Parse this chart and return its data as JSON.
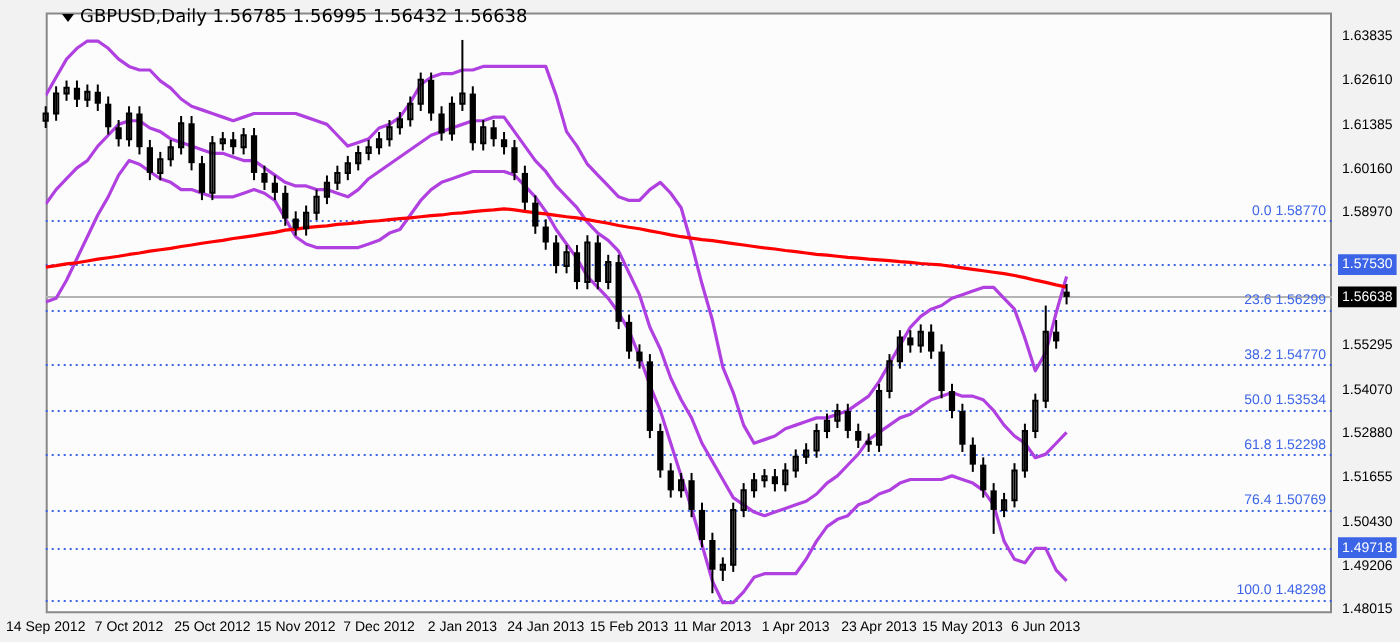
{
  "chart_data": {
    "type": "candlestick",
    "title": "GBPUSD,Daily 1.56785 1.56995 1.56432 1.56638",
    "categories": [
      "14 Sep 2012",
      null,
      null,
      null,
      null,
      null,
      null,
      null,
      "7 Oct 2012",
      null,
      null,
      null,
      null,
      null,
      null,
      null,
      "25 Oct 2012",
      null,
      null,
      null,
      null,
      null,
      null,
      null,
      "15 Nov 2012",
      null,
      null,
      null,
      null,
      null,
      null,
      null,
      "7 Dec 2012",
      null,
      null,
      null,
      null,
      null,
      null,
      null,
      "2 Jan 2013",
      null,
      null,
      null,
      null,
      null,
      null,
      null,
      "24 Jan 2013",
      null,
      null,
      null,
      null,
      null,
      null,
      null,
      "15 Feb 2013",
      null,
      null,
      null,
      null,
      null,
      null,
      null,
      "11 Mar 2013",
      null,
      null,
      null,
      null,
      null,
      null,
      null,
      "1 Apr 2013",
      null,
      null,
      null,
      null,
      null,
      null,
      null,
      "23 Apr 2013",
      null,
      null,
      null,
      null,
      null,
      null,
      null,
      "15 May 2013",
      null,
      null,
      null,
      null,
      null,
      null,
      null,
      "6 Jun 2013",
      null,
      null
    ],
    "color": "#000000",
    "ohlc": [
      [
        1.615,
        1.619,
        1.613,
        1.617
      ],
      [
        1.617,
        1.6245,
        1.615,
        1.6225
      ],
      [
        1.6225,
        1.6261,
        1.6205,
        1.6241
      ],
      [
        1.6241,
        1.6261,
        1.6188,
        1.6208
      ],
      [
        1.6208,
        1.625,
        1.6188,
        1.623
      ],
      [
        1.623,
        1.625,
        1.6177,
        1.6197
      ],
      [
        1.6197,
        1.6217,
        1.6112,
        1.6132
      ],
      [
        1.6132,
        1.6152,
        1.6079,
        1.6099
      ],
      [
        1.6099,
        1.619,
        1.6079,
        1.617
      ],
      [
        1.617,
        1.619,
        1.6057,
        1.6077
      ],
      [
        1.6077,
        1.6097,
        1.5986,
        1.6006
      ],
      [
        1.6006,
        1.6064,
        1.5986,
        1.6044
      ],
      [
        1.6044,
        1.6097,
        1.6024,
        1.6077
      ],
      [
        1.6077,
        1.6163,
        1.6057,
        1.6143
      ],
      [
        1.6143,
        1.6163,
        1.6013,
        1.6033
      ],
      [
        1.6033,
        1.6053,
        1.5931,
        1.5951
      ],
      [
        1.5951,
        1.6108,
        1.5931,
        1.6088
      ],
      [
        1.6088,
        1.6119,
        1.6068,
        1.6099
      ],
      [
        1.6099,
        1.6119,
        1.6057,
        1.6077
      ],
      [
        1.6077,
        1.613,
        1.6057,
        1.611
      ],
      [
        1.611,
        1.613,
        1.5986,
        1.6006
      ],
      [
        1.6006,
        1.6026,
        1.5959,
        1.5979
      ],
      [
        1.5979,
        1.5999,
        1.5931,
        1.5951
      ],
      [
        1.5951,
        1.5971,
        1.586,
        1.588
      ],
      [
        1.588,
        1.59,
        1.5833,
        1.5853
      ],
      [
        1.5853,
        1.5916,
        1.5833,
        1.5896
      ],
      [
        1.5896,
        1.596,
        1.5876,
        1.594
      ],
      [
        1.594,
        1.5999,
        1.592,
        1.5979
      ],
      [
        1.5979,
        1.6026,
        1.5959,
        1.6006
      ],
      [
        1.6006,
        1.6053,
        1.5986,
        1.6033
      ],
      [
        1.6033,
        1.6081,
        1.6013,
        1.6061
      ],
      [
        1.6061,
        1.6097,
        1.6041,
        1.6077
      ],
      [
        1.6077,
        1.6119,
        1.6057,
        1.6099
      ],
      [
        1.6099,
        1.6152,
        1.6079,
        1.6132
      ],
      [
        1.6132,
        1.6174,
        1.6112,
        1.6154
      ],
      [
        1.6154,
        1.6217,
        1.6134,
        1.6197
      ],
      [
        1.6197,
        1.6283,
        1.6177,
        1.6263
      ],
      [
        1.6263,
        1.6283,
        1.615,
        1.617
      ],
      [
        1.617,
        1.619,
        1.6095,
        1.6115
      ],
      [
        1.6115,
        1.6217,
        1.6095,
        1.6197
      ],
      [
        1.6197,
        1.6373,
        1.6177,
        1.6225
      ],
      [
        1.6225,
        1.6245,
        1.6068,
        1.6088
      ],
      [
        1.6088,
        1.6152,
        1.6068,
        1.6132
      ],
      [
        1.6132,
        1.6152,
        1.6079,
        1.6099
      ],
      [
        1.6099,
        1.6119,
        1.6057,
        1.6077
      ],
      [
        1.6077,
        1.6097,
        1.5986,
        1.6006
      ],
      [
        1.6006,
        1.6026,
        1.5904,
        1.5924
      ],
      [
        1.5924,
        1.5944,
        1.5838,
        1.5858
      ],
      [
        1.5858,
        1.5878,
        1.5794,
        1.5814
      ],
      [
        1.5814,
        1.5834,
        1.5729,
        1.5749
      ],
      [
        1.5749,
        1.5807,
        1.5729,
        1.5787
      ],
      [
        1.5787,
        1.5807,
        1.5685,
        1.5705
      ],
      [
        1.5705,
        1.5834,
        1.5685,
        1.5814
      ],
      [
        1.5814,
        1.5834,
        1.5685,
        1.5705
      ],
      [
        1.5705,
        1.578,
        1.5685,
        1.576
      ],
      [
        1.576,
        1.578,
        1.5575,
        1.5595
      ],
      [
        1.5595,
        1.5615,
        1.5493,
        1.5513
      ],
      [
        1.5513,
        1.5533,
        1.5466,
        1.5486
      ],
      [
        1.5486,
        1.5506,
        1.5274,
        1.5294
      ],
      [
        1.5294,
        1.5314,
        1.5165,
        1.5185
      ],
      [
        1.5185,
        1.5205,
        1.511,
        1.513
      ],
      [
        1.513,
        1.5178,
        1.511,
        1.5158
      ],
      [
        1.5158,
        1.5178,
        1.5056,
        1.5076
      ],
      [
        1.5076,
        1.5096,
        1.4973,
        1.4993
      ],
      [
        1.4993,
        1.5013,
        1.4846,
        1.4911
      ],
      [
        1.4911,
        1.4945,
        1.488,
        1.4925
      ],
      [
        1.4925,
        1.5096,
        1.4905,
        1.5076
      ],
      [
        1.5076,
        1.515,
        1.5056,
        1.513
      ],
      [
        1.513,
        1.5178,
        1.511,
        1.5158
      ],
      [
        1.5158,
        1.5189,
        1.5138,
        1.5169
      ],
      [
        1.5169,
        1.5189,
        1.5127,
        1.5147
      ],
      [
        1.5147,
        1.5205,
        1.5127,
        1.5185
      ],
      [
        1.5185,
        1.5243,
        1.5165,
        1.5223
      ],
      [
        1.5223,
        1.526,
        1.5203,
        1.524
      ],
      [
        1.524,
        1.5314,
        1.522,
        1.5294
      ],
      [
        1.5294,
        1.5342,
        1.5274,
        1.5322
      ],
      [
        1.5322,
        1.5369,
        1.5302,
        1.5349
      ],
      [
        1.5349,
        1.5369,
        1.5274,
        1.5294
      ],
      [
        1.5294,
        1.5314,
        1.5247,
        1.5267
      ],
      [
        1.5267,
        1.5287,
        1.5236,
        1.5256
      ],
      [
        1.5256,
        1.5424,
        1.5236,
        1.5404
      ],
      [
        1.5404,
        1.5506,
        1.5384,
        1.5486
      ],
      [
        1.5486,
        1.5572,
        1.5466,
        1.5552
      ],
      [
        1.5552,
        1.5572,
        1.551,
        1.553
      ],
      [
        1.553,
        1.5588,
        1.551,
        1.5568
      ],
      [
        1.5568,
        1.5588,
        1.5493,
        1.5513
      ],
      [
        1.5513,
        1.5533,
        1.5384,
        1.5404
      ],
      [
        1.5404,
        1.5424,
        1.5329,
        1.5349
      ],
      [
        1.5349,
        1.5369,
        1.5236,
        1.5256
      ],
      [
        1.5256,
        1.5276,
        1.5181,
        1.5201
      ],
      [
        1.5201,
        1.5221,
        1.511,
        1.513
      ],
      [
        1.513,
        1.515,
        1.501,
        1.5076
      ],
      [
        1.5076,
        1.5123,
        1.5056,
        1.5103
      ],
      [
        1.5103,
        1.5205,
        1.5083,
        1.5185
      ],
      [
        1.5185,
        1.5314,
        1.5165,
        1.5294
      ],
      [
        1.5294,
        1.5397,
        1.5274,
        1.5377
      ],
      [
        1.5377,
        1.564,
        1.5357,
        1.5568
      ],
      [
        1.5568,
        1.56,
        1.5521,
        1.5541
      ],
      [
        1.56785,
        1.56995,
        1.56432,
        1.56638
      ]
    ],
    "series": [
      {
        "type": "line",
        "color": "#ff0000",
        "values": [
          1.5746,
          1.575,
          1.5755,
          1.5758,
          1.5763,
          1.5768,
          1.5772,
          1.5776,
          1.5781,
          1.5785,
          1.579,
          1.5794,
          1.5798,
          1.5803,
          1.5807,
          1.5812,
          1.5816,
          1.582,
          1.5825,
          1.5829,
          1.5833,
          1.5838,
          1.5842,
          1.5848,
          1.5851,
          1.5855,
          1.5858,
          1.586,
          1.5864,
          1.5866,
          1.5869,
          1.5872,
          1.5874,
          1.5877,
          1.588,
          1.5882,
          1.5885,
          1.5888,
          1.589,
          1.5894,
          1.5896,
          1.5899,
          1.5902,
          1.5904,
          1.5907,
          1.5904,
          1.59,
          1.5896,
          1.5893,
          1.5889,
          1.5885,
          1.5882,
          1.5877,
          1.5872,
          1.5867,
          1.5861,
          1.5856,
          1.5852,
          1.5846,
          1.5841,
          1.5835,
          1.583,
          1.5826,
          1.5822,
          1.5819,
          1.5815,
          1.5811,
          1.5807,
          1.5803,
          1.5799,
          1.5796,
          1.5792,
          1.5789,
          1.5785,
          1.5781,
          1.5779,
          1.5776,
          1.5773,
          1.5771,
          1.5768,
          1.5766,
          1.5764,
          1.5761,
          1.5759,
          1.5756,
          1.5754,
          1.5752,
          1.5748,
          1.5744,
          1.574,
          1.5736,
          1.5732,
          1.5728,
          1.5723,
          1.5717,
          1.571,
          1.5704,
          1.5697,
          1.5691
        ]
      },
      {
        "type": "line",
        "color": "#b040e0",
        "values": [
          1.622,
          1.627,
          1.632,
          1.635,
          1.637,
          1.637,
          1.635,
          1.632,
          1.63,
          1.629,
          1.629,
          1.626,
          1.624,
          1.621,
          1.619,
          1.618,
          1.617,
          1.616,
          1.615,
          1.616,
          1.617,
          1.617,
          1.617,
          1.617,
          1.617,
          1.616,
          1.615,
          1.614,
          1.611,
          1.608,
          1.609,
          1.61,
          1.613,
          1.614,
          1.616,
          1.62,
          1.625,
          1.627,
          1.628,
          1.628,
          1.629,
          1.629,
          1.63,
          1.63,
          1.63,
          1.63,
          1.63,
          1.63,
          1.63,
          1.622,
          1.612,
          1.608,
          1.603,
          1.6,
          1.597,
          1.594,
          1.593,
          1.593,
          1.596,
          1.598,
          1.595,
          1.591,
          1.581,
          1.57,
          1.56,
          1.547,
          1.54,
          1.531,
          1.526,
          1.527,
          1.528,
          1.53,
          1.531,
          1.532,
          1.533,
          1.533,
          1.534,
          1.535,
          1.537,
          1.539,
          1.543,
          1.548,
          1.553,
          1.558,
          1.561,
          1.563,
          1.564,
          1.566,
          1.567,
          1.568,
          1.569,
          1.569,
          1.566,
          1.563,
          1.555,
          1.546,
          1.551,
          1.562,
          1.572
        ]
      },
      {
        "type": "line",
        "color": "#b040e0",
        "values": [
          1.592,
          1.596,
          1.599,
          1.602,
          1.604,
          1.608,
          1.611,
          1.614,
          1.615,
          1.615,
          1.613,
          1.612,
          1.61,
          1.609,
          1.608,
          1.607,
          1.606,
          1.606,
          1.605,
          1.604,
          1.604,
          1.602,
          1.6,
          1.598,
          1.597,
          1.597,
          1.596,
          1.596,
          1.595,
          1.594,
          1.596,
          1.599,
          1.601,
          1.603,
          1.605,
          1.607,
          1.609,
          1.611,
          1.612,
          1.613,
          1.614,
          1.615,
          1.615,
          1.616,
          1.616,
          1.612,
          1.608,
          1.604,
          1.601,
          1.597,
          1.594,
          1.591,
          1.587,
          1.584,
          1.582,
          1.579,
          1.573,
          1.567,
          1.558,
          1.552,
          1.544,
          1.538,
          1.533,
          1.526,
          1.521,
          1.516,
          1.511,
          1.509,
          1.507,
          1.506,
          1.507,
          1.508,
          1.509,
          1.51,
          1.512,
          1.515,
          1.517,
          1.52,
          1.523,
          1.527,
          1.529,
          1.531,
          1.533,
          1.534,
          1.536,
          1.538,
          1.539,
          1.54,
          1.539,
          1.539,
          1.538,
          1.535,
          1.531,
          1.528,
          1.526,
          1.522,
          1.523,
          1.526,
          1.529
        ]
      },
      {
        "type": "line",
        "color": "#b040e0",
        "values": [
          1.565,
          1.566,
          1.571,
          1.577,
          1.583,
          1.589,
          1.594,
          1.6,
          1.604,
          1.603,
          1.601,
          1.599,
          1.598,
          1.596,
          1.596,
          1.595,
          1.594,
          1.594,
          1.594,
          1.595,
          1.596,
          1.595,
          1.593,
          1.588,
          1.583,
          1.581,
          1.58,
          1.58,
          1.58,
          1.58,
          1.58,
          1.581,
          1.582,
          1.584,
          1.585,
          1.589,
          1.593,
          1.596,
          1.598,
          1.599,
          1.6,
          1.601,
          1.601,
          1.601,
          1.601,
          1.6,
          1.597,
          1.594,
          1.59,
          1.585,
          1.581,
          1.577,
          1.572,
          1.569,
          1.566,
          1.562,
          1.557,
          1.55,
          1.542,
          1.535,
          1.526,
          1.517,
          1.508,
          1.498,
          1.488,
          1.482,
          1.482,
          1.485,
          1.489,
          1.49,
          1.49,
          1.49,
          1.49,
          1.494,
          1.499,
          1.503,
          1.505,
          1.506,
          1.509,
          1.51,
          1.512,
          1.513,
          1.515,
          1.516,
          1.516,
          1.516,
          1.516,
          1.517,
          1.516,
          1.515,
          1.513,
          1.509,
          1.499,
          1.494,
          1.493,
          1.497,
          1.497,
          1.491,
          1.488
        ]
      }
    ],
    "ylim": [
      1.4791,
      1.6449
    ],
    "yticks": [
      {
        "value": 1.5753,
        "label": "1.57530"
      },
      1.56638,
      {
        "value": 1.49718,
        "label": "1.49718"
      },
      1.63835,
      {
        "value": 1.6261,
        "label": "1.62610"
      },
      1.61385,
      {
        "value": 1.6016,
        "label": "1.60160"
      },
      {
        "value": 1.5897,
        "label": "1.58970"
      },
      1.55295,
      {
        "value": 1.5407,
        "label": "1.54070"
      },
      {
        "value": 1.5288,
        "label": "1.52880"
      },
      1.51655,
      {
        "value": 1.5043,
        "label": "1.50430"
      },
      1.49206,
      1.48015
    ],
    "ref_lines": [
      {
        "axis": "y",
        "value": 1.5877,
        "label": "0.0 1.58770",
        "color": "#3c64e6",
        "line_style": "dotted"
      },
      {
        "axis": "y",
        "value": 1.5753,
        "color": "#3c64e6",
        "line_style": "dotted"
      },
      {
        "axis": "y",
        "value": 1.56638,
        "color": "#b4b4b4",
        "line_style": "solid"
      },
      {
        "axis": "y",
        "value": 1.56299,
        "label": "23.6 1.56299",
        "color": "#3c64e6",
        "line_style": "dotted"
      },
      {
        "axis": "y",
        "value": 1.5477,
        "label": "38.2 1.54770",
        "color": "#3c64e6",
        "line_style": "dotted"
      },
      {
        "axis": "y",
        "value": 1.53534,
        "label": "50.0 1.53534",
        "color": "#3c64e6",
        "line_style": "dotted"
      },
      {
        "axis": "y",
        "value": 1.52298,
        "label": "61.8 1.52298",
        "color": "#3c64e6",
        "line_style": "dotted"
      },
      {
        "axis": "y",
        "value": 1.50769,
        "label": "76.4 1.50769",
        "color": "#3c64e6",
        "line_style": "dotted"
      },
      {
        "axis": "y",
        "value": 1.49718,
        "color": "#3c64e6",
        "line_style": "dotted"
      },
      {
        "axis": "y",
        "value": 1.48298,
        "label": "100.0 1.48298",
        "color": "#3c64e6",
        "line_style": "dotted"
      }
    ],
    "grid": false,
    "legend": false,
    "marker": "none",
    "line_style": "solid"
  }
}
